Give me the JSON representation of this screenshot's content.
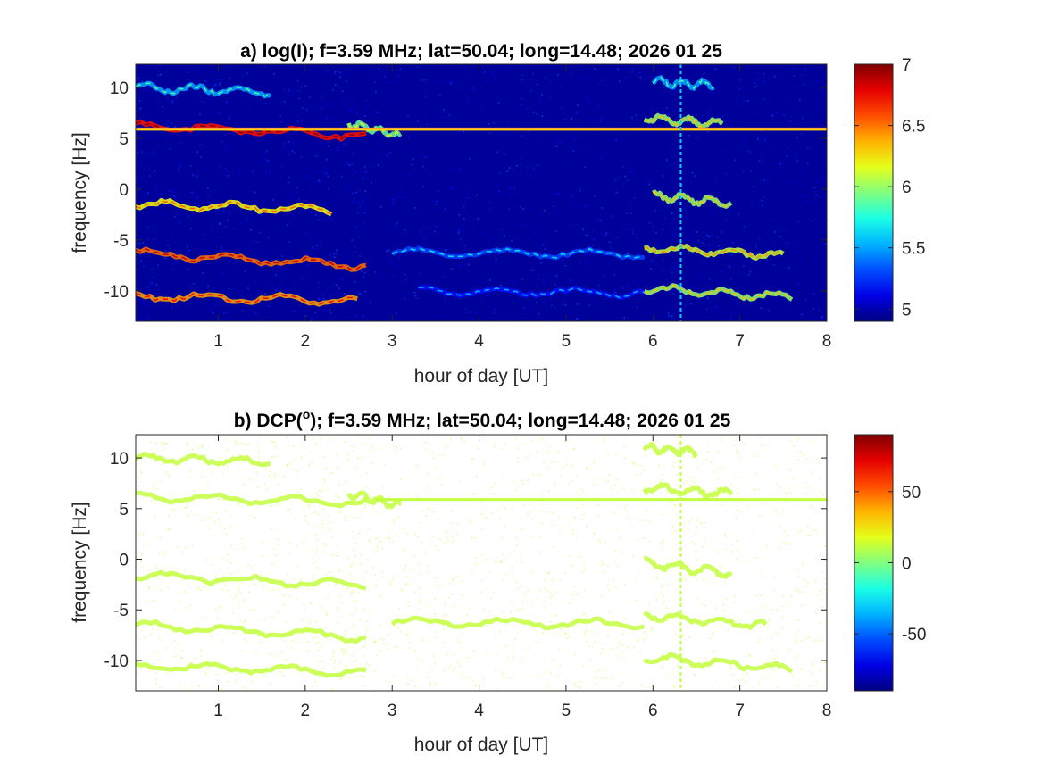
{
  "chart_data": [
    {
      "type": "heatmap",
      "panel": "a",
      "title": "a) log(I); f=3.59 MHz;  lat=50.04; long=14.48; 2026 01 25",
      "xlabel": "hour of day [UT]",
      "ylabel": "frequency [Hz]",
      "xlim": [
        0.05,
        8.0
      ],
      "ylim": [
        -13,
        12.3
      ],
      "xticks": [
        1,
        2,
        3,
        4,
        5,
        6,
        7,
        8
      ],
      "yticks": [
        -10,
        -5,
        0,
        5,
        10
      ],
      "grid": false,
      "colormap": "jet",
      "background_value": 5.0,
      "colorbar": {
        "range": [
          4.9,
          7.0
        ],
        "ticks": [
          "5",
          "5.5",
          "6",
          "6.5",
          "7"
        ]
      },
      "steady_line": {
        "y": 5.9,
        "x_range": [
          0.05,
          8.0
        ],
        "value": 6.3
      },
      "vertical_line": {
        "x": 6.32,
        "value": 5.6
      },
      "traces": [
        {
          "x_range": [
            0.05,
            1.6
          ],
          "y_start": 10.0,
          "y_end": 9.6,
          "value": 5.5
        },
        {
          "x_range": [
            0.05,
            2.7
          ],
          "y_start": 6.3,
          "y_end": 5.3,
          "value": 6.7
        },
        {
          "x_range": [
            2.5,
            3.1
          ],
          "y_start": 6.5,
          "y_end": 5.2,
          "value": 5.9
        },
        {
          "x_range": [
            0.05,
            2.3
          ],
          "y_start": -1.5,
          "y_end": -2.0,
          "value": 6.2
        },
        {
          "x_range": [
            0.05,
            2.7
          ],
          "y_start": -6.3,
          "y_end": -7.5,
          "value": 6.5
        },
        {
          "x_range": [
            0.05,
            2.6
          ],
          "y_start": -10.5,
          "y_end": -11.0,
          "value": 6.4
        },
        {
          "x_range": [
            5.9,
            6.8
          ],
          "y_start": 7.0,
          "y_end": 6.4,
          "value": 6.0
        },
        {
          "x_range": [
            6.0,
            6.7
          ],
          "y_start": 10.6,
          "y_end": 10.2,
          "value": 5.5
        },
        {
          "x_range": [
            6.0,
            6.9
          ],
          "y_start": -0.6,
          "y_end": -1.4,
          "value": 6.0
        },
        {
          "x_range": [
            5.9,
            7.5
          ],
          "y_start": -5.8,
          "y_end": -6.5,
          "value": 6.1
        },
        {
          "x_range": [
            5.9,
            7.6
          ],
          "y_start": -9.8,
          "y_end": -10.6,
          "value": 6.0
        },
        {
          "x_range": [
            3.0,
            5.9
          ],
          "y_start": -6.2,
          "y_end": -6.4,
          "value": 5.3
        },
        {
          "x_range": [
            3.3,
            5.9
          ],
          "y_start": -10.0,
          "y_end": -10.2,
          "value": 5.2
        }
      ]
    },
    {
      "type": "heatmap",
      "panel": "b",
      "title": "b) DCP(",
      "title_superscript": "o",
      "title_rest": "); f=3.59 MHz;  lat=50.04; long=14.48; 2026 01 25",
      "xlabel": "hour of day [UT]",
      "ylabel": "frequency [Hz]",
      "xlim": [
        0.05,
        8.0
      ],
      "ylim": [
        -13,
        12.3
      ],
      "xticks": [
        1,
        2,
        3,
        4,
        5,
        6,
        7,
        8
      ],
      "yticks": [
        -10,
        -5,
        0,
        5,
        10
      ],
      "grid": false,
      "colormap": "jet",
      "background_value": null,
      "colorbar": {
        "range": [
          -90,
          90
        ],
        "ticks": [
          "-50",
          "0",
          "50"
        ]
      },
      "steady_line": {
        "y": 5.9,
        "x_range": [
          2.8,
          8.0
        ],
        "value": 12
      },
      "vertical_line": {
        "x": 6.32,
        "value": 12
      },
      "traces": [
        {
          "x_range": [
            0.05,
            1.6
          ],
          "y_start": 10.0,
          "y_end": 9.6,
          "value": 12
        },
        {
          "x_range": [
            0.05,
            2.7
          ],
          "y_start": 6.2,
          "y_end": 5.6,
          "value": 12
        },
        {
          "x_range": [
            2.5,
            3.1
          ],
          "y_start": 6.5,
          "y_end": 5.2,
          "value": 12
        },
        {
          "x_range": [
            0.05,
            2.7
          ],
          "y_start": -1.6,
          "y_end": -2.6,
          "value": 12
        },
        {
          "x_range": [
            0.05,
            2.7
          ],
          "y_start": -6.5,
          "y_end": -7.7,
          "value": 12
        },
        {
          "x_range": [
            0.05,
            2.7
          ],
          "y_start": -10.5,
          "y_end": -11.2,
          "value": 12
        },
        {
          "x_range": [
            5.9,
            6.9
          ],
          "y_start": 7.1,
          "y_end": 6.4,
          "value": 12
        },
        {
          "x_range": [
            5.9,
            6.5
          ],
          "y_start": 11.0,
          "y_end": 10.6,
          "value": 12
        },
        {
          "x_range": [
            5.9,
            6.9
          ],
          "y_start": -0.4,
          "y_end": -1.4,
          "value": 12
        },
        {
          "x_range": [
            5.9,
            7.3
          ],
          "y_start": -5.5,
          "y_end": -6.6,
          "value": 12
        },
        {
          "x_range": [
            5.9,
            7.6
          ],
          "y_start": -9.7,
          "y_end": -10.8,
          "value": 12
        },
        {
          "x_range": [
            3.0,
            5.9
          ],
          "y_start": -6.2,
          "y_end": -6.4,
          "value": 12
        }
      ]
    }
  ]
}
